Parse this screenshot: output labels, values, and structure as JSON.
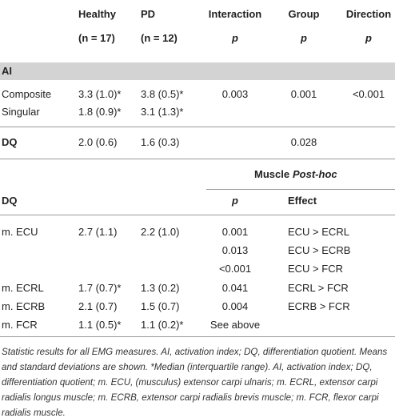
{
  "table": {
    "header": {
      "columns": [
        "Healthy",
        "PD",
        "Interaction",
        "Group",
        "Direction"
      ],
      "n": [
        "(n = 17)",
        "(n = 12)"
      ],
      "stat": [
        "p",
        "p",
        "p"
      ]
    },
    "ai": {
      "label": "AI",
      "rows": [
        {
          "measure": "Composite",
          "healthy": "3.3 (1.0)*",
          "pd": "3.8 (0.5)*",
          "interaction": "0.003",
          "group": "0.001",
          "direction": "<0.001"
        },
        {
          "measure": "Singular",
          "healthy": "1.8 (0.9)*",
          "pd": "3.1 (1.3)*"
        }
      ]
    },
    "dq": {
      "measure": "DQ",
      "healthy": "2.0 (0.6)",
      "pd": "1.6 (0.3)",
      "group": "0.028"
    },
    "posthoc": {
      "title": "Muscle",
      "title_italic": "Post-hoc",
      "label": "DQ",
      "p_header": "p",
      "effect_header": "Effect",
      "rows": [
        {
          "muscle": "m. ECU",
          "healthy": "2.7 (1.1)",
          "pd": "2.2 (1.0)",
          "p": "0.001",
          "effect": "ECU > ECRL"
        },
        {
          "p": "0.013",
          "effect": "ECU > ECRB"
        },
        {
          "p": "<0.001",
          "effect": "ECU > FCR"
        },
        {
          "muscle": "m. ECRL",
          "healthy": "1.7 (0.7)*",
          "pd": "1.3 (0.2)",
          "p": "0.041",
          "effect": "ECRL > FCR"
        },
        {
          "muscle": "m. ECRB",
          "healthy": "2.1 (0.7)",
          "pd": "1.5 (0.7)",
          "p": "0.004",
          "effect": "ECRB > FCR"
        },
        {
          "muscle": "m. FCR",
          "healthy": "1.1 (0.5)*",
          "pd": "1.1 (0.2)*",
          "p": "See above"
        }
      ]
    },
    "footnote": "Statistic results for all EMG measures. AI, activation index; DQ, differentiation quotient. Means and standard deviations are shown. *Median (interquartile range). AI, activation index; DQ, differentiation quotient; m. ECU, (musculus) extensor carpi ulnaris; m. ECRL, extensor carpi radialis longus muscle; m. ECRB, extensor carpi radialis brevis muscle; m. FCR, flexor carpi radialis muscle."
  }
}
